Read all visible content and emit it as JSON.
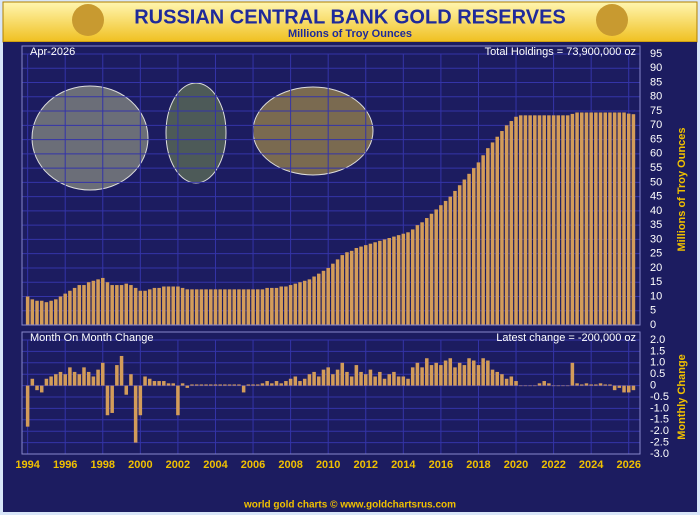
{
  "title": "RUSSIAN CENTRAL BANK GOLD RESERVES",
  "subtitle": "Millions of Troy Ounces",
  "footer": "world gold charts © www.goldchartsrus.com",
  "chart_data": [
    {
      "type": "bar",
      "date_label": "Apr-2026",
      "annotation": "Total Holdings = 73,900,000 oz",
      "y_label": "Millions of Troy Ounces",
      "color": "#d39c5a",
      "grid": true,
      "x": [
        1994,
        1994.25,
        1994.5,
        1994.75,
        1995,
        1995.25,
        1995.5,
        1995.75,
        1996,
        1996.25,
        1996.5,
        1996.75,
        1997,
        1997.25,
        1997.5,
        1997.75,
        1998,
        1998.25,
        1998.5,
        1998.75,
        1999,
        1999.25,
        1999.5,
        1999.75,
        2000,
        2000.25,
        2000.5,
        2000.75,
        2001,
        2001.25,
        2001.5,
        2001.75,
        2002,
        2002.25,
        2002.5,
        2002.75,
        2003,
        2003.25,
        2003.5,
        2003.75,
        2004,
        2004.25,
        2004.5,
        2004.75,
        2005,
        2005.25,
        2005.5,
        2005.75,
        2006,
        2006.25,
        2006.5,
        2006.75,
        2007,
        2007.25,
        2007.5,
        2007.75,
        2008,
        2008.25,
        2008.5,
        2008.75,
        2009,
        2009.25,
        2009.5,
        2009.75,
        2010,
        2010.25,
        2010.5,
        2010.75,
        2011,
        2011.25,
        2011.5,
        2011.75,
        2012,
        2012.25,
        2012.5,
        2012.75,
        2013,
        2013.25,
        2013.5,
        2013.75,
        2014,
        2014.25,
        2014.5,
        2014.75,
        2015,
        2015.25,
        2015.5,
        2015.75,
        2016,
        2016.25,
        2016.5,
        2016.75,
        2017,
        2017.25,
        2017.5,
        2017.75,
        2018,
        2018.25,
        2018.5,
        2018.75,
        2019,
        2019.25,
        2019.5,
        2019.75,
        2020,
        2020.25,
        2020.5,
        2020.75,
        2021,
        2021.25,
        2021.5,
        2021.75,
        2022,
        2022.25,
        2022.5,
        2022.75,
        2023,
        2023.25,
        2023.5,
        2023.75,
        2024,
        2024.25,
        2024.5,
        2024.75,
        2025,
        2025.25,
        2025.5,
        2025.75,
        2026,
        2026.25
      ],
      "values": [
        10,
        9,
        8.5,
        8.5,
        8,
        8.5,
        9,
        10,
        11,
        12,
        13,
        14,
        14,
        15,
        15.5,
        16,
        16.5,
        15,
        14,
        14,
        14,
        14.5,
        14,
        13,
        12,
        12,
        12.5,
        13,
        13,
        13.5,
        13.5,
        13.5,
        13.5,
        13,
        12.5,
        12.5,
        12.5,
        12.5,
        12.5,
        12.5,
        12.5,
        12.5,
        12.5,
        12.5,
        12.5,
        12.5,
        12.5,
        12.5,
        12.5,
        12.5,
        12.5,
        13,
        13,
        13,
        13.5,
        13.5,
        14,
        14.5,
        15,
        15.5,
        16,
        17,
        18,
        19,
        20,
        21.5,
        23,
        24.5,
        25.5,
        26,
        27,
        27.5,
        28,
        28.5,
        29,
        29.5,
        30,
        30.5,
        31,
        31.5,
        32,
        32.5,
        33.5,
        35,
        36,
        37.5,
        39,
        40.5,
        42,
        43.5,
        45,
        47,
        49,
        51,
        53,
        55,
        57,
        59.5,
        62,
        64,
        66,
        68,
        70,
        71.5,
        73,
        73.5,
        73.5,
        73.5,
        73.5,
        73.5,
        73.5,
        73.5,
        73.5,
        73.5,
        73.5,
        73.5,
        74,
        74.5,
        74.5,
        74.5,
        74.5,
        74.5,
        74.5,
        74.5,
        74.5,
        74.5,
        74.5,
        74.5,
        74.1,
        73.9
      ],
      "xlim": [
        1993.7,
        2026.6
      ],
      "xticks": [
        1994,
        1996,
        1998,
        2000,
        2002,
        2004,
        2006,
        2008,
        2010,
        2012,
        2014,
        2016,
        2018,
        2020,
        2022,
        2024,
        2026
      ],
      "ylim": [
        0,
        95
      ],
      "yticks": [
        0,
        5,
        10,
        15,
        20,
        25,
        30,
        35,
        40,
        45,
        50,
        55,
        60,
        65,
        70,
        75,
        80,
        85,
        90,
        95
      ]
    },
    {
      "type": "bar",
      "annotation_left": "Month On Month Change",
      "annotation": "Latest change = -200,000 oz",
      "y_label": "Monthly Change",
      "color": "#d39c5a",
      "grid": true,
      "x": [
        1994,
        1994.25,
        1994.5,
        1994.75,
        1995,
        1995.25,
        1995.5,
        1995.75,
        1996,
        1996.25,
        1996.5,
        1996.75,
        1997,
        1997.25,
        1997.5,
        1997.75,
        1998,
        1998.25,
        1998.5,
        1998.75,
        1999,
        1999.25,
        1999.5,
        1999.75,
        2000,
        2000.25,
        2000.5,
        2000.75,
        2001,
        2001.25,
        2001.5,
        2001.75,
        2002,
        2002.25,
        2002.5,
        2002.75,
        2003,
        2003.25,
        2003.5,
        2003.75,
        2004,
        2004.25,
        2004.5,
        2004.75,
        2005,
        2005.25,
        2005.5,
        2005.75,
        2006,
        2006.25,
        2006.5,
        2006.75,
        2007,
        2007.25,
        2007.5,
        2007.75,
        2008,
        2008.25,
        2008.5,
        2008.75,
        2009,
        2009.25,
        2009.5,
        2009.75,
        2010,
        2010.25,
        2010.5,
        2010.75,
        2011,
        2011.25,
        2011.5,
        2011.75,
        2012,
        2012.25,
        2012.5,
        2012.75,
        2013,
        2013.25,
        2013.5,
        2013.75,
        2014,
        2014.25,
        2014.5,
        2014.75,
        2015,
        2015.25,
        2015.5,
        2015.75,
        2016,
        2016.25,
        2016.5,
        2016.75,
        2017,
        2017.25,
        2017.5,
        2017.75,
        2018,
        2018.25,
        2018.5,
        2018.75,
        2019,
        2019.25,
        2019.5,
        2019.75,
        2020,
        2020.25,
        2020.5,
        2020.75,
        2021,
        2021.25,
        2021.5,
        2021.75,
        2022,
        2022.25,
        2022.5,
        2022.75,
        2023,
        2023.25,
        2023.5,
        2023.75,
        2024,
        2024.25,
        2024.5,
        2024.75,
        2025,
        2025.25,
        2025.5,
        2025.75,
        2026,
        2026.25
      ],
      "values": [
        -1.8,
        0.3,
        -0.2,
        -0.3,
        0.3,
        0.4,
        0.5,
        0.6,
        0.5,
        0.8,
        0.6,
        0.5,
        0.8,
        0.6,
        0.4,
        0.7,
        1.0,
        -1.3,
        -1.2,
        0.9,
        1.3,
        -0.4,
        0.5,
        -2.5,
        -1.3,
        0.4,
        0.3,
        0.2,
        0.2,
        0.2,
        0.1,
        0.1,
        -1.3,
        0.1,
        -0.1,
        0.05,
        0.05,
        0.05,
        0.05,
        0.05,
        0.05,
        0.05,
        0.05,
        0.05,
        0.05,
        0.05,
        -0.3,
        0.05,
        0.05,
        0.05,
        0.1,
        0.2,
        0.1,
        0.2,
        0.1,
        0.2,
        0.3,
        0.4,
        0.2,
        0.3,
        0.5,
        0.6,
        0.4,
        0.7,
        0.8,
        0.5,
        0.7,
        1.0,
        0.6,
        0.4,
        0.9,
        0.6,
        0.5,
        0.7,
        0.4,
        0.6,
        0.3,
        0.5,
        0.6,
        0.4,
        0.4,
        0.3,
        0.8,
        1.0,
        0.8,
        1.2,
        0.9,
        1.0,
        0.9,
        1.1,
        1.2,
        0.8,
        1.0,
        0.9,
        1.2,
        1.1,
        0.9,
        1.2,
        1.1,
        0.7,
        0.6,
        0.5,
        0.3,
        0.4,
        0.2,
        0,
        0,
        0,
        0,
        0.1,
        0.2,
        0.1,
        0,
        0,
        0,
        0,
        1.0,
        0.1,
        0.05,
        0.1,
        0.05,
        0.05,
        0.1,
        0.05,
        0.05,
        -0.2,
        -0.1,
        -0.3,
        -0.3,
        -0.2
      ],
      "xlim": [
        1993.7,
        2026.6
      ],
      "ylim": [
        -3,
        2
      ],
      "yticks": [
        {
          "value": -3,
          "label": "-3.0"
        },
        {
          "value": -2.5,
          "label": "-2.5"
        },
        {
          "value": -2,
          "label": "-2.0"
        },
        {
          "value": -1.5,
          "label": "-1.5"
        },
        {
          "value": -1,
          "label": "-1.0"
        },
        {
          "value": -0.5,
          "label": "-0.5"
        },
        0,
        {
          "value": 0.5,
          "label": "0.5"
        },
        {
          "value": 1,
          "label": "1.0"
        },
        {
          "value": 1.5,
          "label": "1.5"
        },
        {
          "value": 2,
          "label": "2.0"
        }
      ]
    }
  ]
}
